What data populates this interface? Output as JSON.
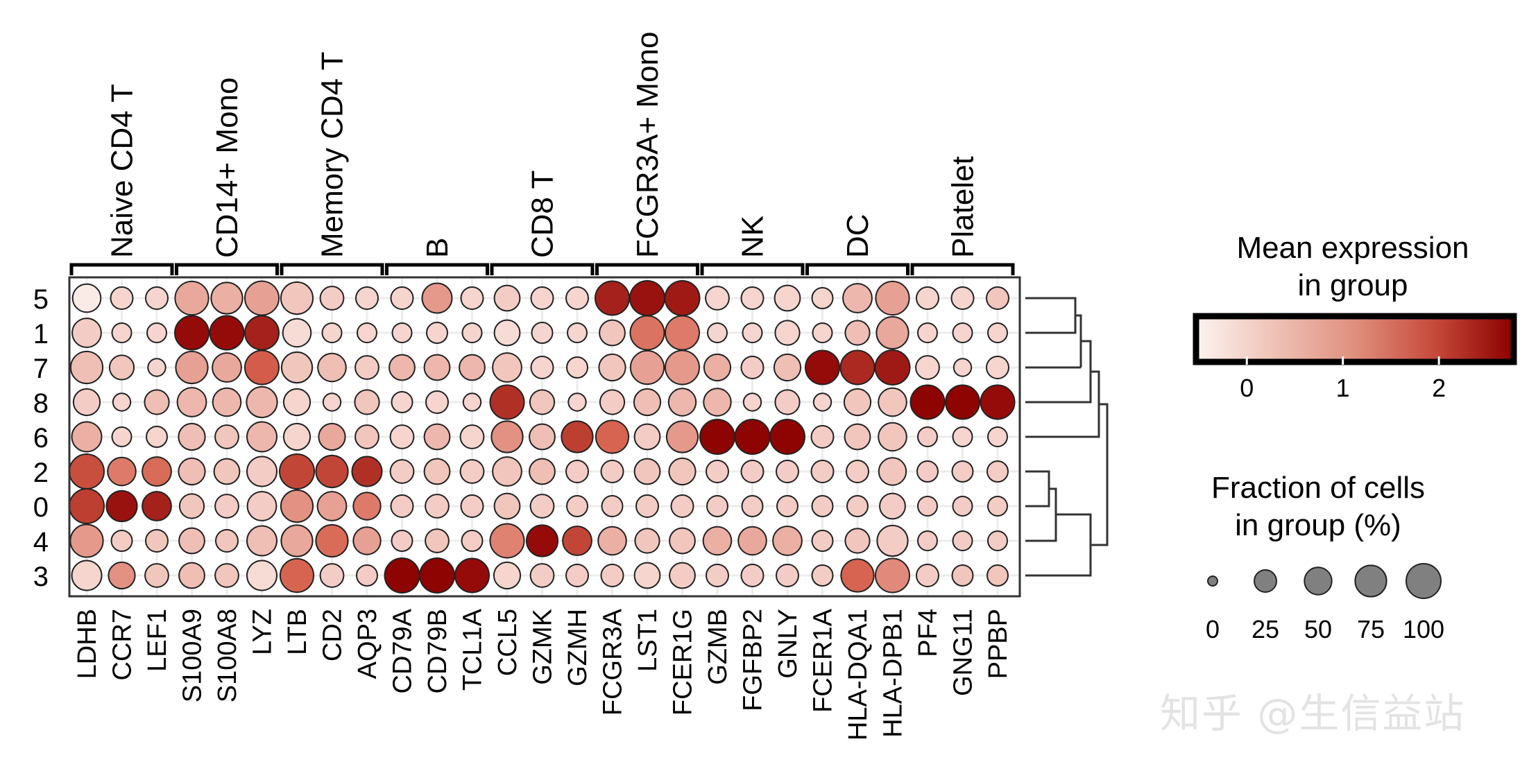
{
  "chart_data": {
    "type": "dotplot",
    "groups": [
      "Naive CD4 T",
      "CD14+ Mono",
      "Memory CD4 T",
      "B",
      "CD8 T",
      "FCGR3A+ Mono",
      "NK",
      "DC",
      "Platelet"
    ],
    "genes": [
      "LDHB",
      "CCR7",
      "LEF1",
      "S100A9",
      "S100A8",
      "LYZ",
      "LTB",
      "CD2",
      "AQP3",
      "CD79A",
      "CD79B",
      "TCL1A",
      "CCL5",
      "GZMK",
      "GZMH",
      "FCGR3A",
      "LST1",
      "FCER1G",
      "GZMB",
      "FGFBP2",
      "GNLY",
      "FCER1A",
      "HLA-DQA1",
      "HLA-DPB1",
      "PF4",
      "GNG11",
      "PPBP"
    ],
    "clusters": [
      "5",
      "1",
      "7",
      "8",
      "6",
      "2",
      "0",
      "4",
      "3"
    ],
    "mean_expression": [
      [
        -0.4,
        -0.1,
        -0.1,
        0.5,
        0.4,
        0.6,
        0.1,
        0.0,
        -0.1,
        -0.1,
        0.7,
        -0.1,
        0.0,
        -0.1,
        -0.1,
        2.3,
        2.5,
        2.4,
        -0.1,
        -0.1,
        -0.1,
        -0.1,
        0.3,
        0.6,
        -0.1,
        -0.1,
        0.1
      ],
      [
        0.0,
        -0.1,
        -0.1,
        2.6,
        2.6,
        2.3,
        -0.2,
        -0.1,
        -0.1,
        -0.1,
        -0.1,
        -0.1,
        -0.2,
        -0.1,
        -0.1,
        0.1,
        1.2,
        1.1,
        -0.1,
        -0.1,
        -0.1,
        -0.1,
        0.2,
        0.5,
        -0.1,
        -0.1,
        -0.1
      ],
      [
        0.2,
        0.1,
        -0.1,
        0.6,
        0.5,
        1.5,
        0.1,
        0.2,
        0.0,
        0.3,
        0.3,
        0.3,
        0.1,
        -0.1,
        -0.1,
        0.1,
        0.6,
        0.7,
        0.4,
        0.0,
        0.2,
        2.6,
        2.2,
        2.4,
        -0.1,
        -0.1,
        -0.1
      ],
      [
        0.0,
        -0.1,
        0.2,
        0.3,
        0.3,
        0.3,
        -0.1,
        -0.1,
        0.1,
        -0.1,
        -0.1,
        -0.1,
        2.1,
        0.1,
        -0.1,
        0.0,
        0.2,
        0.3,
        0.3,
        -0.1,
        0.0,
        -0.1,
        0.1,
        0.1,
        2.7,
        2.7,
        2.6
      ],
      [
        0.4,
        -0.1,
        -0.1,
        0.2,
        0.1,
        0.3,
        -0.1,
        0.5,
        0.1,
        -0.1,
        0.3,
        -0.1,
        0.8,
        0.2,
        1.9,
        1.4,
        0.0,
        0.7,
        2.7,
        2.7,
        2.7,
        0.0,
        0.1,
        0.1,
        0.0,
        -0.1,
        -0.1
      ],
      [
        1.7,
        1.1,
        1.3,
        0.2,
        0.1,
        0.0,
        1.8,
        1.8,
        2.1,
        0.0,
        0.1,
        0.0,
        0.1,
        0.2,
        0.0,
        0.0,
        0.1,
        0.1,
        0.0,
        0.0,
        0.0,
        0.0,
        0.0,
        0.1,
        0.0,
        0.0,
        0.0
      ],
      [
        1.9,
        2.5,
        2.3,
        0.1,
        0.0,
        0.0,
        0.8,
        0.6,
        1.1,
        0.0,
        0.0,
        0.0,
        0.1,
        0.0,
        0.0,
        0.0,
        0.0,
        0.0,
        0.0,
        0.0,
        0.0,
        0.0,
        0.0,
        0.0,
        0.0,
        0.0,
        0.0
      ],
      [
        0.7,
        0.0,
        0.1,
        0.2,
        0.1,
        0.2,
        0.5,
        1.3,
        0.6,
        0.0,
        0.1,
        0.0,
        1.0,
        2.6,
        1.8,
        0.4,
        0.1,
        0.1,
        0.4,
        0.5,
        0.4,
        0.0,
        0.1,
        0.0,
        0.0,
        0.0,
        0.0
      ],
      [
        -0.1,
        0.8,
        0.1,
        0.2,
        0.1,
        -0.2,
        1.4,
        0.0,
        0.0,
        2.7,
        2.7,
        2.6,
        -0.1,
        0.0,
        0.0,
        0.0,
        -0.1,
        0.0,
        0.0,
        0.0,
        0.0,
        0.0,
        1.4,
        0.9,
        0.0,
        0.1,
        0.1
      ]
    ],
    "fraction_pct": [
      [
        55,
        25,
        25,
        90,
        75,
        95,
        80,
        30,
        25,
        25,
        65,
        25,
        40,
        25,
        25,
        95,
        100,
        100,
        30,
        25,
        40,
        20,
        60,
        90,
        25,
        25,
        25
      ],
      [
        60,
        15,
        15,
        95,
        95,
        95,
        55,
        15,
        15,
        15,
        20,
        15,
        40,
        20,
        15,
        40,
        95,
        95,
        15,
        15,
        35,
        15,
        35,
        80,
        15,
        15,
        15
      ],
      [
        80,
        35,
        10,
        80,
        60,
        95,
        70,
        55,
        30,
        40,
        40,
        40,
        60,
        25,
        20,
        45,
        90,
        95,
        45,
        25,
        45,
        95,
        95,
        100,
        30,
        10,
        25
      ],
      [
        45,
        10,
        35,
        60,
        55,
        70,
        45,
        10,
        35,
        20,
        25,
        10,
        95,
        35,
        10,
        35,
        45,
        50,
        50,
        10,
        35,
        10,
        45,
        55,
        95,
        95,
        95
      ],
      [
        65,
        15,
        20,
        45,
        30,
        65,
        45,
        45,
        30,
        30,
        40,
        30,
        75,
        40,
        75,
        85,
        40,
        75,
        100,
        100,
        100,
        25,
        40,
        55,
        15,
        15,
        15
      ],
      [
        100,
        55,
        60,
        45,
        40,
        65,
        100,
        80,
        65,
        30,
        40,
        30,
        60,
        40,
        25,
        25,
        40,
        45,
        25,
        25,
        25,
        25,
        25,
        50,
        20,
        20,
        20
      ],
      [
        100,
        70,
        60,
        35,
        30,
        60,
        80,
        60,
        50,
        25,
        30,
        25,
        40,
        30,
        20,
        20,
        25,
        25,
        20,
        20,
        20,
        20,
        20,
        40,
        15,
        15,
        15
      ],
      [
        85,
        20,
        25,
        40,
        25,
        65,
        75,
        80,
        50,
        20,
        30,
        20,
        95,
        75,
        60,
        55,
        35,
        40,
        55,
        55,
        60,
        20,
        35,
        70,
        15,
        15,
        15
      ],
      [
        65,
        45,
        30,
        40,
        30,
        65,
        90,
        30,
        20,
        100,
        100,
        95,
        45,
        30,
        25,
        25,
        40,
        40,
        25,
        25,
        25,
        20,
        85,
        95,
        25,
        20,
        20
      ]
    ],
    "colorbar": {
      "title_line1": "Mean expression",
      "title_line2": "in group",
      "min": -0.5,
      "max": 2.75,
      "ticks": [
        "0",
        "1",
        "2"
      ],
      "tick_values": [
        0,
        1,
        2
      ],
      "color_low": "#fdf3ef",
      "color_mid": "#d6604d",
      "color_high": "#8b0000"
    },
    "size_legend": {
      "title_line1": "Fraction of cells",
      "title_line2": "in group (%)",
      "values": [
        0,
        25,
        50,
        75,
        100
      ],
      "labels": [
        "0",
        "25",
        "50",
        "75",
        "100"
      ]
    },
    "dendrogram": "(5,1),(7),(8),(6) | (2,0),(4),(3)"
  },
  "watermark": "知乎 @生信益站"
}
